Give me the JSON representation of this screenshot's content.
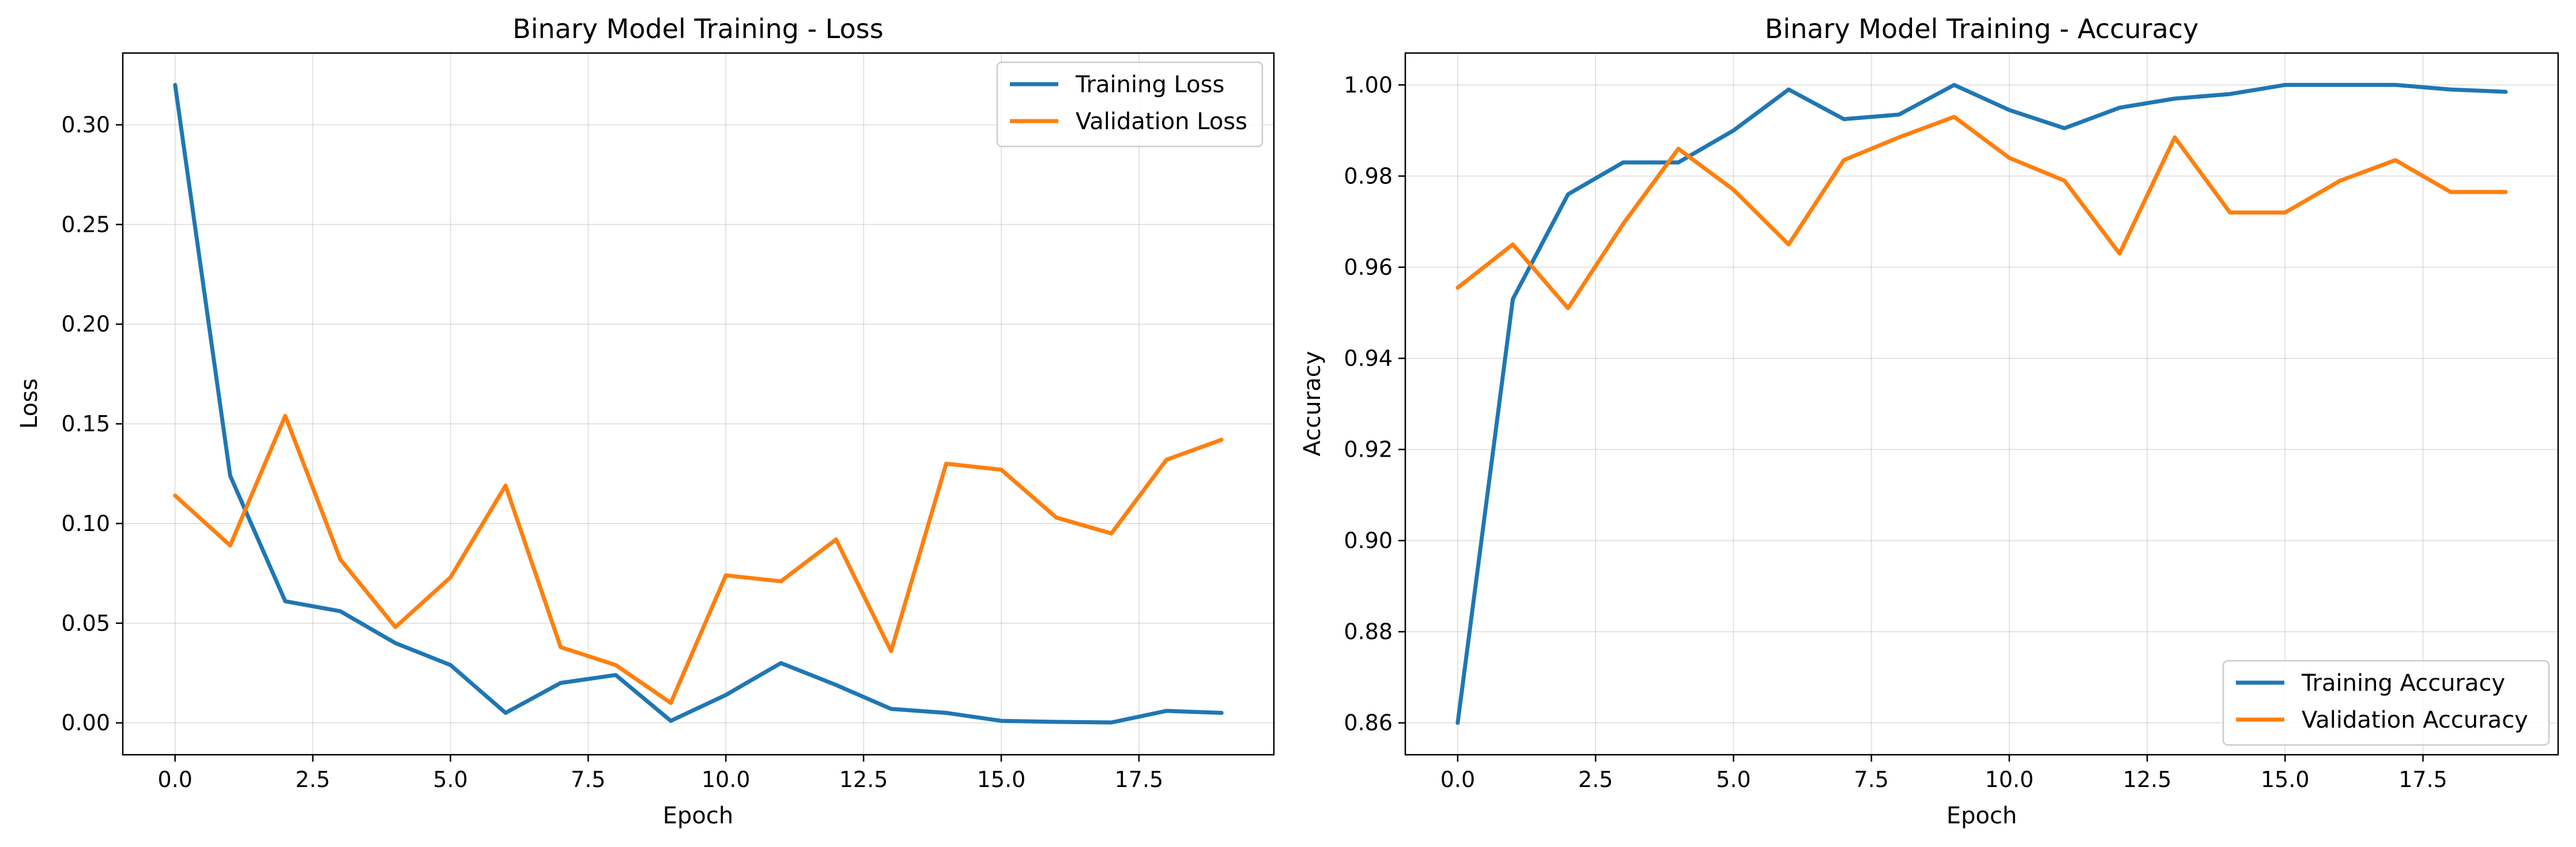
{
  "chart_data": [
    {
      "type": "line",
      "title": "Binary Model Training - Loss",
      "xlabel": "Epoch",
      "ylabel": "Loss",
      "xlim": [
        -0.95,
        19.95
      ],
      "ylim": [
        -0.016,
        0.336
      ],
      "xticks": [
        0,
        2.5,
        5,
        7.5,
        10,
        12.5,
        15,
        17.5
      ],
      "xtick_labels": [
        "0.0",
        "2.5",
        "5.0",
        "7.5",
        "10.0",
        "12.5",
        "15.0",
        "17.5"
      ],
      "yticks": [
        0,
        0.05,
        0.1,
        0.15,
        0.2,
        0.25,
        0.3
      ],
      "ytick_labels": [
        "0.00",
        "0.05",
        "0.10",
        "0.15",
        "0.20",
        "0.25",
        "0.30"
      ],
      "grid": true,
      "legend_position": "top-right",
      "x": [
        0,
        1,
        2,
        3,
        4,
        5,
        6,
        7,
        8,
        9,
        10,
        11,
        12,
        13,
        14,
        15,
        16,
        17,
        18,
        19
      ],
      "series": [
        {
          "name": "Training Loss",
          "color": "#1f77b4",
          "values": [
            0.32,
            0.124,
            0.061,
            0.056,
            0.04,
            0.029,
            0.005,
            0.02,
            0.024,
            0.001,
            0.014,
            0.03,
            0.019,
            0.007,
            0.005,
            0.001,
            0.0005,
            0.0002,
            0.006,
            0.005
          ]
        },
        {
          "name": "Validation Loss",
          "color": "#ff7f0e",
          "values": [
            0.114,
            0.089,
            0.154,
            0.082,
            0.048,
            0.073,
            0.119,
            0.038,
            0.029,
            0.01,
            0.074,
            0.071,
            0.092,
            0.036,
            0.13,
            0.127,
            0.103,
            0.095,
            0.132,
            0.142
          ]
        }
      ]
    },
    {
      "type": "line",
      "title": "Binary Model Training - Accuracy",
      "xlabel": "Epoch",
      "ylabel": "Accuracy",
      "xlim": [
        -0.95,
        19.95
      ],
      "ylim": [
        0.853,
        1.007
      ],
      "xticks": [
        0,
        2.5,
        5,
        7.5,
        10,
        12.5,
        15,
        17.5
      ],
      "xtick_labels": [
        "0.0",
        "2.5",
        "5.0",
        "7.5",
        "10.0",
        "12.5",
        "15.0",
        "17.5"
      ],
      "yticks": [
        0.86,
        0.88,
        0.9,
        0.92,
        0.94,
        0.96,
        0.98,
        1.0
      ],
      "ytick_labels": [
        "0.86",
        "0.88",
        "0.90",
        "0.92",
        "0.94",
        "0.96",
        "0.98",
        "1.00"
      ],
      "grid": true,
      "legend_position": "bottom-right",
      "x": [
        0,
        1,
        2,
        3,
        4,
        5,
        6,
        7,
        8,
        9,
        10,
        11,
        12,
        13,
        14,
        15,
        16,
        17,
        18,
        19
      ],
      "series": [
        {
          "name": "Training Accuracy",
          "color": "#1f77b4",
          "values": [
            0.86,
            0.953,
            0.976,
            0.983,
            0.983,
            0.99,
            0.999,
            0.9925,
            0.9935,
            1.0,
            0.9945,
            0.9905,
            0.995,
            0.997,
            0.998,
            1.0,
            1.0,
            1.0,
            0.999,
            0.9985
          ]
        },
        {
          "name": "Validation Accuracy",
          "color": "#ff7f0e",
          "values": [
            0.9555,
            0.965,
            0.951,
            0.9695,
            0.986,
            0.977,
            0.965,
            0.9835,
            0.9885,
            0.993,
            0.984,
            0.979,
            0.963,
            0.9885,
            0.972,
            0.972,
            0.979,
            0.9835,
            0.9765,
            0.9765
          ]
        }
      ]
    }
  ]
}
